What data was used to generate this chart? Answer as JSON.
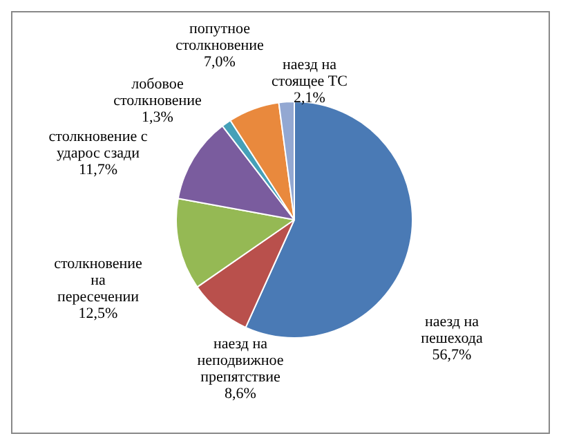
{
  "chart_data": {
    "type": "pie",
    "categories": [
      "наезд на пешехода",
      "наезд на неподвижное препятствие",
      "столкновение на пересечении",
      "столкновение с ударос сзади",
      "лобовое столкновение",
      "попутное столкновение",
      "наезд на стоящее ТС"
    ],
    "values": [
      56.7,
      8.6,
      12.5,
      11.7,
      1.3,
      7.0,
      2.1
    ],
    "value_labels": [
      "56,7%",
      "8,6%",
      "12,5%",
      "11,7%",
      "1,3%",
      "7,0%",
      "2,1%"
    ],
    "colors": [
      "#4a7ab5",
      "#b9504c",
      "#95b954",
      "#7a5c9e",
      "#45a0b8",
      "#e9893d",
      "#93a8d2"
    ],
    "legend": false
  }
}
